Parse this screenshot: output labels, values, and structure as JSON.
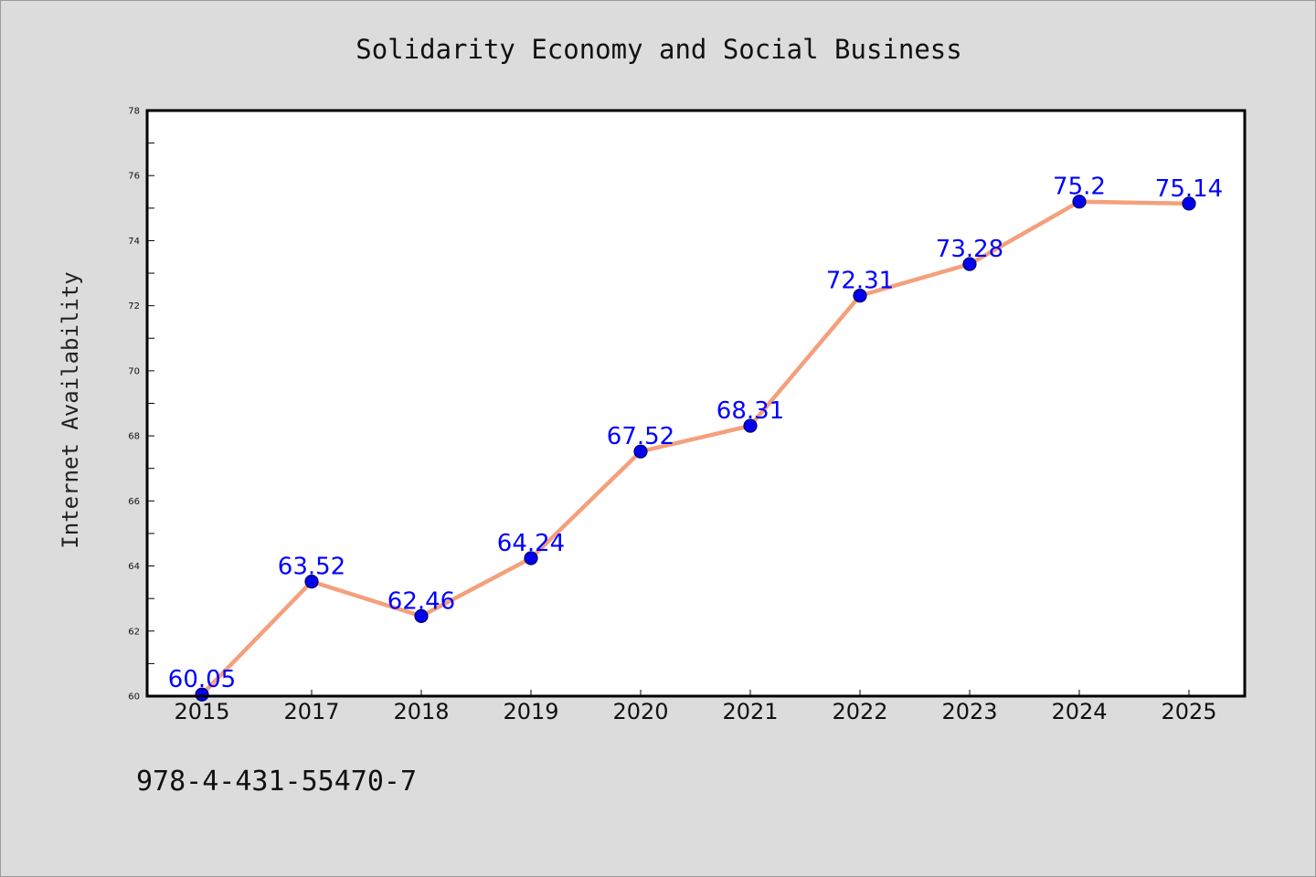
{
  "chart_data": {
    "type": "line",
    "title": "Solidarity Economy and Social Business",
    "xlabel": "",
    "ylabel": "Internet Availability",
    "categories": [
      "2015",
      "2017",
      "2018",
      "2019",
      "2020",
      "2021",
      "2022",
      "2023",
      "2024",
      "2025"
    ],
    "series": [
      {
        "values": [
          60.05,
          63.52,
          62.46,
          64.24,
          67.52,
          68.31,
          72.31,
          73.28,
          75.2,
          75.14
        ],
        "labels": [
          "60.05",
          "63.52",
          "62.46",
          "64.24",
          "67.52",
          "68.31",
          "72.31",
          "73.28",
          "75.2",
          "75.14"
        ]
      }
    ],
    "ylim": [
      60,
      78
    ],
    "yticks": [
      60,
      62,
      64,
      66,
      68,
      70,
      72,
      74,
      76,
      78
    ],
    "ytick_labels": [
      "60",
      "62",
      "64",
      "66",
      "68",
      "70",
      "72",
      "74",
      "76",
      "78"
    ],
    "grid": false,
    "legend": "none"
  },
  "footer": {
    "isbn": "978-4-431-55470-7"
  },
  "colors": {
    "background": "#dcdcdc",
    "plot_background": "#ffffff",
    "line": "#f4a07c",
    "marker": "#0000ee",
    "marker_edge": "#000066",
    "data_label": "#0000ff",
    "axis": "#000000"
  }
}
